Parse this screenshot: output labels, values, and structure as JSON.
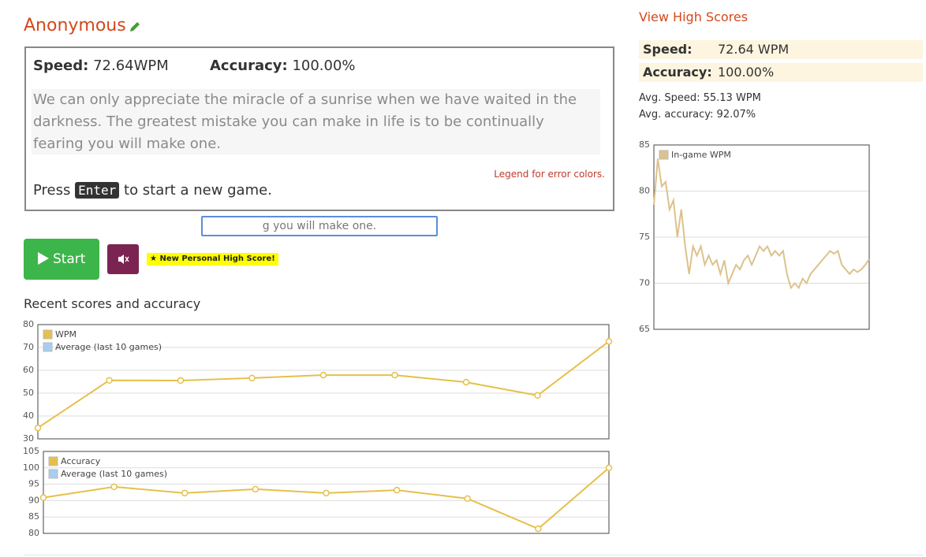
{
  "header": {
    "name": "Anonymous"
  },
  "result": {
    "speed_label": "Speed:",
    "speed": "72.64WPM",
    "accuracy_label": "Accuracy:",
    "accuracy": "100.00%"
  },
  "passage": "We can only appreciate the miracle of a sunrise when we have waited in the darkness. The greatest mistake you can make in life is to be continually fearing you will make one.",
  "legend_link": "Legend for error colors.",
  "prompt": {
    "before": "Press",
    "key": "Enter",
    "after": "to start a new game."
  },
  "input_value": "g you will make one.",
  "start_button": "Start",
  "badge": "★ New Personal High Score!",
  "recent_heading": "Recent scores and accuracy",
  "sidebar": {
    "link": "View High Scores",
    "rows": [
      [
        "Speed:",
        "72.64 WPM"
      ],
      [
        "Accuracy:",
        "100.00%"
      ]
    ],
    "avg_speed": "Avg. Speed: 55.13 WPM",
    "avg_accuracy": "Avg. accuracy: 92.07%"
  },
  "chart_data": [
    {
      "type": "line",
      "series": [
        {
          "name": "WPM",
          "color": "#e6c04a",
          "values": [
            34.8,
            55.6,
            55.5,
            56.6,
            57.9,
            57.9,
            54.8,
            49,
            72.64
          ]
        },
        {
          "name": "Average (last 10 games)",
          "color": "#a9cdf0"
        }
      ],
      "ylim": [
        30,
        80
      ],
      "yticks": [
        30,
        40,
        50,
        60,
        70,
        80
      ],
      "grid": true,
      "markers": true
    },
    {
      "type": "line",
      "series": [
        {
          "name": "Accuracy",
          "color": "#e6c04a",
          "values": [
            90.9,
            94.2,
            92.3,
            93.5,
            92.3,
            93.2,
            90.6,
            81.4,
            100
          ]
        },
        {
          "name": "Average (last 10 games)",
          "color": "#a9cdf0"
        }
      ],
      "ylim": [
        80,
        105
      ],
      "yticks": [
        80,
        85,
        90,
        95,
        100,
        105
      ],
      "grid": true,
      "markers": true
    },
    {
      "type": "line",
      "series": [
        {
          "name": "In-game WPM",
          "color": "#dcc28c",
          "values": [
            78.5,
            83.5,
            80.5,
            81,
            78,
            79,
            75,
            78,
            74,
            71,
            74,
            73,
            74,
            72,
            73,
            72,
            72.5,
            71,
            72.5,
            70,
            71,
            72,
            71.5,
            72.5,
            73,
            72,
            73,
            74,
            73.5,
            74,
            73,
            73.5,
            73,
            73.5,
            71,
            69.5,
            70,
            69.5,
            70.5,
            70,
            71,
            71.5,
            72,
            72.5,
            73,
            73.5,
            73.2,
            73.5,
            72,
            71.5,
            71,
            71.5,
            71.2,
            71.5,
            72,
            72.6
          ]
        }
      ],
      "ylim": [
        65,
        85
      ],
      "yticks": [
        65,
        70,
        75,
        80,
        85
      ],
      "grid": true,
      "markers": false
    }
  ]
}
